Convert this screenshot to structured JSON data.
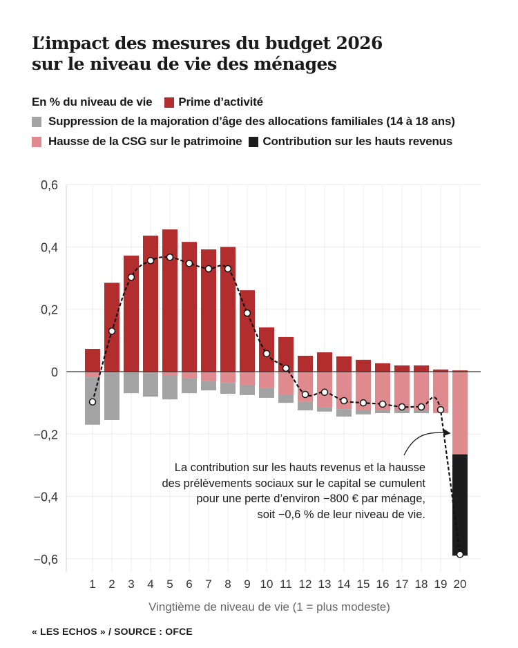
{
  "header": {
    "title_line1": "L’impact des mesures du budget 2026",
    "title_line2": "sur le niveau de vie des ménages"
  },
  "legend": {
    "unit": "En % du niveau de vie",
    "items": [
      {
        "key": "prime",
        "label": "Prime d’activité",
        "color": "#B22E2E"
      },
      {
        "key": "af",
        "label": "Suppression de la majoration d’âge des allocations familiales (14 à 18 ans)",
        "color": "#A3A3A3"
      },
      {
        "key": "csg",
        "label": "Hausse de la CSG sur le patrimoine",
        "color": "#DE8A8E"
      },
      {
        "key": "chr",
        "label": "Contribution sur les hauts revenus",
        "color": "#1C1C1C"
      }
    ]
  },
  "annotation": {
    "lines": [
      "La contribution sur les hauts revenus et la hausse",
      "des prélèvements sociaux sur le capital se cumulent",
      "pour une perte d’environ −800 € par ménage,",
      "soit −0,6 % de leur niveau de vie."
    ]
  },
  "footer": {
    "source": "« LES ECHOS » / SOURCE : OFCE"
  },
  "chart_data": {
    "type": "bar",
    "stacked": true,
    "title": "L’impact des mesures du budget 2026 sur le niveau de vie des ménages",
    "xlabel": "Vingtième de niveau de vie (1 = plus modeste)",
    "ylabel": "En % du niveau de vie",
    "ylim": [
      -0.6,
      0.6
    ],
    "yticks": [
      0.6,
      0.4,
      0.2,
      0,
      -0.2,
      -0.4,
      -0.6
    ],
    "ytick_labels": [
      "0,6",
      "0,4",
      "0,2",
      "0",
      "−0,2",
      "−0,4",
      "−0,6"
    ],
    "grid": true,
    "legend_position": "top",
    "categories": [
      "1",
      "2",
      "3",
      "4",
      "5",
      "6",
      "7",
      "8",
      "9",
      "10",
      "11",
      "12",
      "13",
      "14",
      "15",
      "16",
      "17",
      "18",
      "19",
      "20"
    ],
    "series": [
      {
        "name": "Prime d’activité",
        "color": "#B22E2E",
        "values": [
          0.073,
          0.285,
          0.372,
          0.436,
          0.456,
          0.416,
          0.392,
          0.4,
          0.261,
          0.142,
          0.111,
          0.051,
          0.062,
          0.049,
          0.038,
          0.027,
          0.02,
          0.02,
          0.007,
          0.004
        ]
      },
      {
        "name": "Hausse de la CSG sur le patrimoine",
        "color": "#DE8A8E",
        "values": [
          -0.018,
          -0.003,
          -0.004,
          -0.005,
          -0.011,
          -0.022,
          -0.029,
          -0.036,
          -0.042,
          -0.053,
          -0.073,
          -0.097,
          -0.115,
          -0.12,
          -0.124,
          -0.124,
          -0.124,
          -0.124,
          -0.131,
          -0.265
        ]
      },
      {
        "name": "Suppression de la majoration d’âge des allocations familiales (14 à 18 ans)",
        "color": "#A3A3A3",
        "values": [
          -0.152,
          -0.152,
          -0.065,
          -0.075,
          -0.078,
          -0.047,
          -0.031,
          -0.035,
          -0.033,
          -0.031,
          -0.027,
          -0.027,
          -0.013,
          -0.024,
          -0.013,
          -0.009,
          -0.009,
          -0.009,
          -0.002,
          0
        ]
      },
      {
        "name": "Contribution sur les hauts revenus",
        "color": "#1C1C1C",
        "values": [
          0,
          0,
          0,
          0,
          0,
          0,
          0,
          0,
          0,
          0,
          0,
          0,
          0,
          0,
          0,
          0,
          0,
          0,
          0,
          -0.325
        ]
      }
    ],
    "total_line": {
      "name": "Effet total",
      "style": "dashed-with-markers",
      "values": [
        -0.097,
        0.13,
        0.303,
        0.356,
        0.367,
        0.347,
        0.33,
        0.33,
        0.188,
        0.058,
        0.011,
        -0.073,
        -0.066,
        -0.093,
        -0.1,
        -0.104,
        -0.113,
        -0.113,
        -0.122,
        -0.586
      ]
    },
    "negative_stack_order": [
      "Hausse de la CSG sur le patrimoine",
      "Contribution sur les hauts revenus",
      "Suppression de la majoration d’âge des allocations familiales (14 à 18 ans)"
    ]
  }
}
